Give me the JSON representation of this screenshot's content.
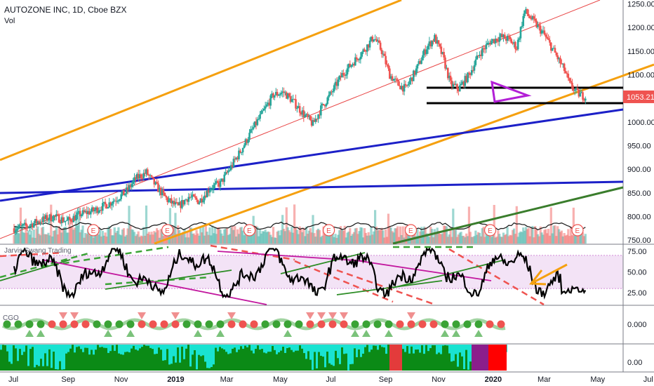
{
  "header": {
    "symbol_line": "AUTOZONE INC, 1D, Cboe BZX",
    "vol_label": "Vol"
  },
  "panes": {
    "rsi_label": "Jarvis Swang Trading",
    "cgo_label": "CGO",
    "bottom_label": ""
  },
  "colors": {
    "bull": "#26a69a",
    "bear": "#ef5350",
    "orange": "#f5a00f",
    "blue": "#1c20c8",
    "green_trend": "#3a7d2c",
    "purple": "#b21fd6",
    "magenta": "#c2179e",
    "price_tag": "#ef5350"
  },
  "chart_data": [
    {
      "type": "candlestick",
      "title": "AUTOZONE INC, 1D, Cboe BZX",
      "ylim": [
        740,
        1265
      ],
      "y_ticks": [
        750,
        800,
        850,
        900,
        950,
        1000,
        1050,
        1100,
        1150,
        1200,
        1250
      ],
      "y_tick_labels": [
        "750.00",
        "800.00",
        "850.00",
        "900.00",
        "950.00",
        "1000.00",
        "1050.00",
        "1100.00",
        "1150.00",
        "1200.00",
        "1250.00"
      ],
      "x_tick_labels": [
        "Jul",
        "Sep",
        "Nov",
        "2019",
        "Mar",
        "May",
        "Jul",
        "Sep",
        "Nov",
        "2020",
        "Mar",
        "May",
        "Jul"
      ],
      "last_price": 1053.21,
      "last_price_label": "1053.21",
      "close_anchors": [
        [
          0,
          775
        ],
        [
          0.5,
          780
        ],
        [
          1,
          792
        ],
        [
          1.5,
          800
        ],
        [
          2,
          790
        ],
        [
          2.5,
          805
        ],
        [
          3,
          812
        ],
        [
          3.6,
          828
        ],
        [
          4.2,
          850
        ],
        [
          4.6,
          880
        ],
        [
          5,
          893
        ],
        [
          5.4,
          862
        ],
        [
          5.8,
          835
        ],
        [
          6.2,
          820
        ],
        [
          6.6,
          842
        ],
        [
          7,
          832
        ],
        [
          7.4,
          860
        ],
        [
          7.8,
          870
        ],
        [
          8.2,
          905
        ],
        [
          8.6,
          942
        ],
        [
          9.0,
          983
        ],
        [
          9.4,
          1020
        ],
        [
          9.8,
          1057
        ],
        [
          10.2,
          1063
        ],
        [
          10.6,
          1040
        ],
        [
          11.0,
          1013
        ],
        [
          11.3,
          995
        ],
        [
          11.6,
          1028
        ],
        [
          12.0,
          1062
        ],
        [
          12.4,
          1100
        ],
        [
          12.8,
          1125
        ],
        [
          13.2,
          1150
        ],
        [
          13.6,
          1180
        ],
        [
          13.9,
          1150
        ],
        [
          14.2,
          1100
        ],
        [
          14.5,
          1080
        ],
        [
          14.8,
          1070
        ],
        [
          15.2,
          1110
        ],
        [
          15.6,
          1158
        ],
        [
          15.9,
          1178
        ],
        [
          16.2,
          1140
        ],
        [
          16.5,
          1080
        ],
        [
          16.8,
          1070
        ],
        [
          17.2,
          1100
        ],
        [
          17.6,
          1145
        ],
        [
          18.0,
          1170
        ],
        [
          18.4,
          1180
        ],
        [
          18.7,
          1175
        ],
        [
          19.0,
          1158
        ],
        [
          19.3,
          1235
        ],
        [
          19.6,
          1215
        ],
        [
          20.0,
          1188
        ],
        [
          20.4,
          1150
        ],
        [
          20.8,
          1110
        ],
        [
          21.0,
          1080
        ],
        [
          21.3,
          1060
        ],
        [
          21.6,
          1053
        ]
      ],
      "events": [
        "E",
        "E",
        "E",
        "E",
        "E",
        "E",
        "E"
      ],
      "events_month_index": [
        3.0,
        5.8,
        8.9,
        11.9,
        15.0,
        18.0,
        21.3
      ]
    },
    {
      "type": "line",
      "name": "Jarvis Swang Trading",
      "ylim": [
        17,
        80
      ],
      "y_ticks": [
        25,
        50,
        75
      ],
      "y_tick_labels": [
        "25.00",
        "50.00",
        "75.00"
      ],
      "band_upper": 70,
      "band_lower": 30
    },
    {
      "type": "line",
      "name": "CGO",
      "y_ticks": [
        0
      ],
      "y_tick_labels": [
        "0.000"
      ]
    },
    {
      "type": "area",
      "name": "",
      "y_ticks": [
        0
      ],
      "y_tick_labels": [
        "0.00"
      ]
    }
  ]
}
